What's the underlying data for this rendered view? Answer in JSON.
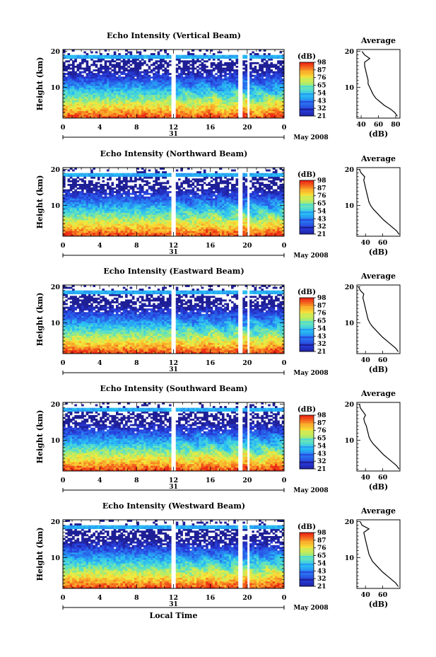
{
  "chart_data": [
    {
      "type": "heatmap",
      "title": "Echo Intensity (Vertical Beam)",
      "xlabel": "",
      "ylabel": "Height (km)",
      "x_ticks": [
        "0",
        "4",
        "8",
        "12",
        "16",
        "20",
        "0"
      ],
      "xlim": [
        0,
        24
      ],
      "y_ticks": [
        "10",
        "20"
      ],
      "ylim": [
        1.5,
        20.5
      ],
      "day_label": "31",
      "month_label": "May 2008",
      "colorbar": {
        "unit": "(dB)",
        "levels": [
          "21",
          "32",
          "43",
          "54",
          "65",
          "76",
          "87",
          "98"
        ]
      },
      "gaps": [
        [
          11.85,
          12.25
        ],
        [
          19.1,
          19.45
        ],
        [
          19.9,
          20.3
        ]
      ],
      "profile": {
        "title": "Average",
        "xlabel": "(dB)",
        "x_ticks": [
          "40",
          "60",
          "80"
        ],
        "xlim": [
          35,
          85
        ],
        "y_ticks": [
          "10",
          "20"
        ],
        "height_km": [
          2,
          3,
          4,
          5,
          6,
          7,
          8,
          9,
          10,
          11,
          12,
          13,
          14,
          15,
          16,
          17,
          18,
          19,
          20
        ],
        "db": [
          82,
          79,
          74,
          67,
          62,
          57,
          54,
          52,
          50,
          48,
          48,
          47,
          46,
          45,
          44,
          44,
          50,
          44,
          41
        ]
      }
    },
    {
      "type": "heatmap",
      "title": "Echo Intensity (Northward Beam)",
      "xlabel": "",
      "ylabel": "Height (km)",
      "x_ticks": [
        "0",
        "4",
        "8",
        "12",
        "16",
        "20",
        "0"
      ],
      "xlim": [
        0,
        24
      ],
      "y_ticks": [
        "10",
        "20"
      ],
      "ylim": [
        1.5,
        20.5
      ],
      "day_label": "31",
      "month_label": "May 2008",
      "colorbar": {
        "unit": "(dB)",
        "levels": [
          "21",
          "32",
          "43",
          "54",
          "65",
          "76",
          "87",
          "98"
        ]
      },
      "gaps": [
        [
          11.85,
          12.25
        ],
        [
          19.1,
          19.45
        ],
        [
          19.9,
          20.3
        ]
      ],
      "profile": {
        "title": "Average",
        "xlabel": "(dB)",
        "x_ticks": [
          "40",
          "60"
        ],
        "xlim": [
          30,
          80
        ],
        "y_ticks": [
          "10",
          "20"
        ],
        "height_km": [
          2,
          3,
          4,
          5,
          6,
          7,
          8,
          9,
          10,
          11,
          12,
          13,
          14,
          15,
          16,
          17,
          18,
          19,
          20
        ],
        "db": [
          79,
          76,
          71,
          66,
          61,
          57,
          53,
          49,
          46,
          44,
          43,
          42,
          41,
          40,
          39,
          38,
          39,
          35,
          33
        ]
      }
    },
    {
      "type": "heatmap",
      "title": "Echo Intensity (Eastward Beam)",
      "xlabel": "",
      "ylabel": "Height (km)",
      "x_ticks": [
        "0",
        "4",
        "8",
        "12",
        "16",
        "20",
        "0"
      ],
      "xlim": [
        0,
        24
      ],
      "y_ticks": [
        "10",
        "20"
      ],
      "ylim": [
        1.5,
        20.5
      ],
      "day_label": "31",
      "month_label": "May 2008",
      "colorbar": {
        "unit": "(dB)",
        "levels": [
          "21",
          "32",
          "43",
          "54",
          "65",
          "76",
          "87",
          "98"
        ]
      },
      "gaps": [
        [
          11.85,
          12.25
        ],
        [
          19.1,
          19.45
        ],
        [
          19.9,
          20.3
        ]
      ],
      "profile": {
        "title": "Average",
        "xlabel": "(dB)",
        "x_ticks": [
          "40",
          "60"
        ],
        "xlim": [
          30,
          80
        ],
        "y_ticks": [
          "10",
          "20"
        ],
        "height_km": [
          2,
          3,
          4,
          5,
          6,
          7,
          8,
          9,
          10,
          11,
          12,
          13,
          14,
          15,
          16,
          17,
          18,
          19,
          20
        ],
        "db": [
          78,
          75,
          70,
          65,
          60,
          56,
          52,
          48,
          45,
          43,
          42,
          41,
          40,
          39,
          38,
          37,
          38,
          34,
          32
        ]
      }
    },
    {
      "type": "heatmap",
      "title": "Echo Intensity (Southward Beam)",
      "xlabel": "",
      "ylabel": "Height (km)",
      "x_ticks": [
        "0",
        "4",
        "8",
        "12",
        "16",
        "20",
        "0"
      ],
      "xlim": [
        0,
        24
      ],
      "y_ticks": [
        "10",
        "20"
      ],
      "ylim": [
        1.5,
        20.5
      ],
      "day_label": "31",
      "month_label": "May 2008",
      "colorbar": {
        "unit": "(dB)",
        "levels": [
          "21",
          "32",
          "43",
          "54",
          "65",
          "76",
          "87",
          "98"
        ]
      },
      "gaps": [
        [
          11.85,
          12.25
        ],
        [
          19.1,
          19.45
        ],
        [
          19.9,
          20.3
        ]
      ],
      "profile": {
        "title": "Average",
        "xlabel": "(dB)",
        "x_ticks": [
          "40",
          "60"
        ],
        "xlim": [
          30,
          80
        ],
        "y_ticks": [
          "10",
          "20"
        ],
        "height_km": [
          2,
          3,
          4,
          5,
          6,
          7,
          8,
          9,
          10,
          11,
          12,
          13,
          14,
          15,
          16,
          17,
          18,
          19,
          20
        ],
        "db": [
          79,
          76,
          71,
          66,
          61,
          57,
          53,
          49,
          46,
          44,
          43,
          42,
          41,
          39,
          38,
          40,
          37,
          34,
          33
        ]
      }
    },
    {
      "type": "heatmap",
      "title": "Echo Intensity (Westward Beam)",
      "xlabel": "Local Time",
      "ylabel": "Height (km)",
      "x_ticks": [
        "0",
        "4",
        "8",
        "12",
        "16",
        "20",
        "0"
      ],
      "xlim": [
        0,
        24
      ],
      "y_ticks": [
        "10",
        "20"
      ],
      "ylim": [
        1.5,
        20.5
      ],
      "day_label": "31",
      "month_label": "May 2008",
      "colorbar": {
        "unit": "(dB)",
        "levels": [
          "21",
          "32",
          "43",
          "54",
          "65",
          "76",
          "87",
          "98"
        ]
      },
      "gaps": [
        [
          11.85,
          12.25
        ],
        [
          19.1,
          19.45
        ],
        [
          19.9,
          20.3
        ]
      ],
      "profile": {
        "title": "Average",
        "xlabel": "(dB)",
        "x_ticks": [
          "40",
          "60"
        ],
        "xlim": [
          30,
          80
        ],
        "y_ticks": [
          "10",
          "20"
        ],
        "height_km": [
          2,
          3,
          4,
          5,
          6,
          7,
          8,
          9,
          10,
          11,
          12,
          13,
          14,
          15,
          16,
          17,
          18,
          19,
          20
        ],
        "db": [
          78,
          75,
          70,
          65,
          60,
          56,
          52,
          48,
          46,
          44,
          43,
          42,
          41,
          40,
          39,
          38,
          44,
          36,
          34
        ]
      }
    }
  ]
}
